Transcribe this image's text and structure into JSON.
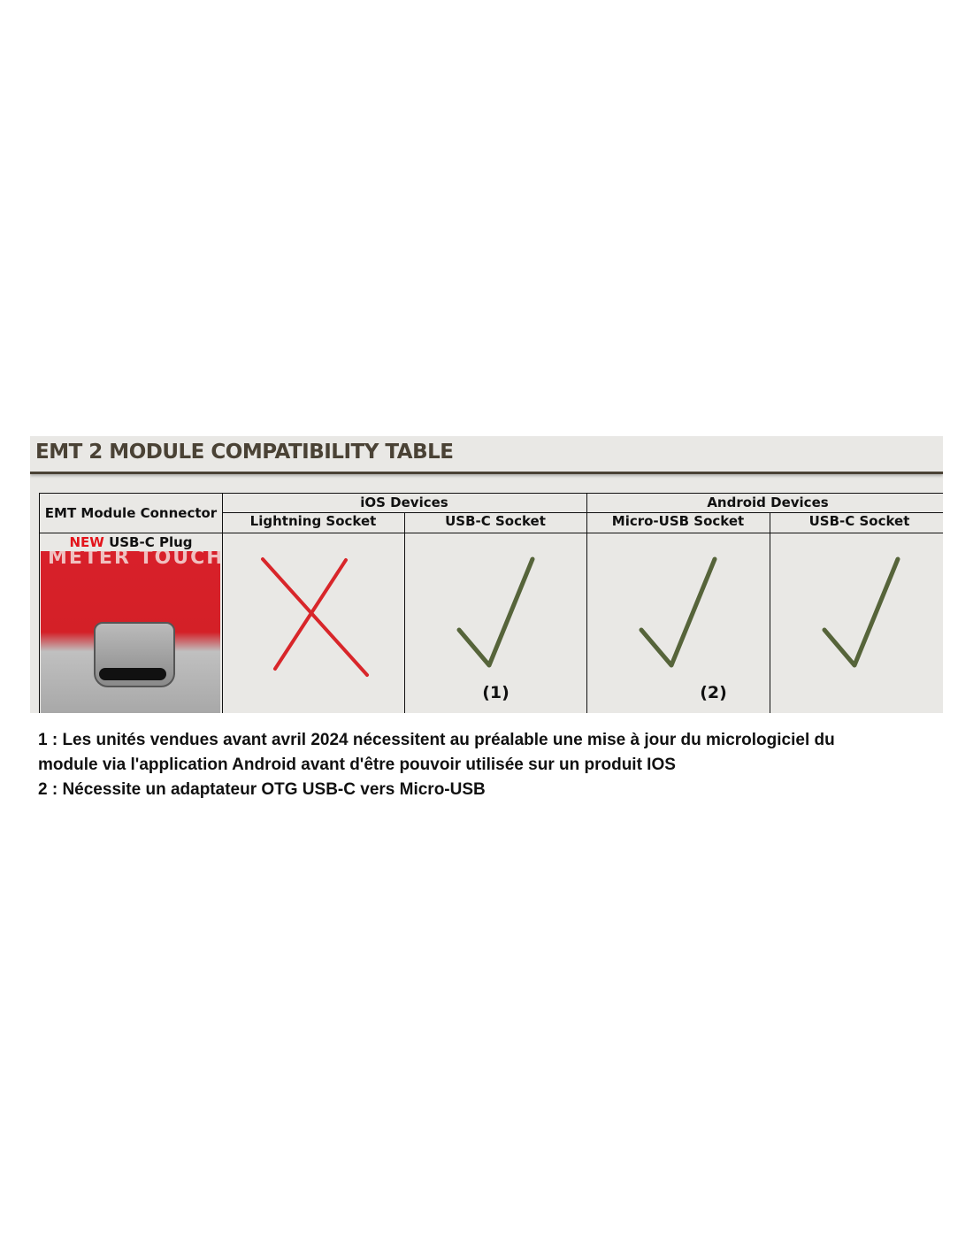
{
  "title": "EMT 2 MODULE COMPATIBILITY TABLE",
  "table": {
    "corner_header": "EMT Module Connector",
    "groups": [
      "iOS Devices",
      "Android Devices"
    ],
    "columns": [
      "Lightning Socket",
      "USB-C Socket",
      "Micro-USB Socket",
      "USB-C Socket"
    ],
    "row": {
      "new_label": "NEW",
      "connector_label": "USB-C Plug",
      "photo_text": "METER TOUCH",
      "cells": [
        {
          "compatible": false,
          "note": ""
        },
        {
          "compatible": true,
          "note": "(1)"
        },
        {
          "compatible": true,
          "note": "(2)"
        },
        {
          "compatible": true,
          "note": ""
        }
      ]
    }
  },
  "colors": {
    "new": "#e3141b",
    "cross": "#d8262a",
    "check": "#56643a",
    "title": "#4a4235"
  },
  "notes": [
    "1 : Les unités vendues avant avril 2024 nécessitent au préalable une mise à jour du micrologiciel du",
    "module via l'application Android avant d'être pouvoir utilisée sur un produit IOS",
    "2 : Nécessite un adaptateur OTG USB-C vers Micro-USB"
  ]
}
